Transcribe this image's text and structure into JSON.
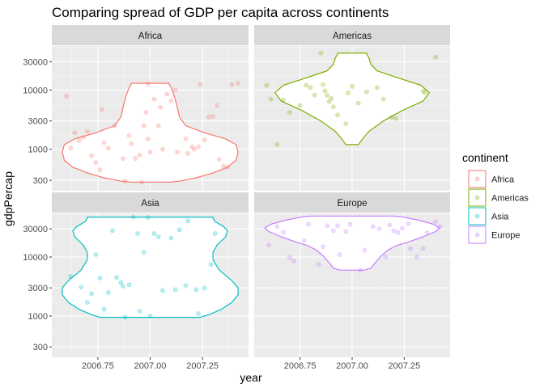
{
  "chart_data": {
    "type": "violin",
    "title": "Comparing spread of GDP per capita across continents",
    "xlabel": "year",
    "ylabel": "gdpPercap",
    "x_ticks": [
      "2006.75",
      "2007.00",
      "2007.25"
    ],
    "x_tick_values": [
      2006.75,
      2007.0,
      2007.25
    ],
    "xlim": [
      2006.53,
      2007.47
    ],
    "y_scale": "log10",
    "y_ticks": [
      "300",
      "1000",
      "3000",
      "10000",
      "30000"
    ],
    "y_tick_values": [
      300,
      1000,
      3000,
      10000,
      30000
    ],
    "ylim": [
      200,
      55000
    ],
    "grid": true,
    "legend": {
      "title": "continent",
      "position": "right",
      "entries": [
        "Africa",
        "Americas",
        "Asia",
        "Europe"
      ]
    },
    "panels": [
      {
        "name": "Africa",
        "color": "#F8766D",
        "violin": {
          "x_center": 2007.0,
          "half_width_max": 0.42,
          "profile": [
            [
              280,
              0.09
            ],
            [
              290,
              0.14
            ],
            [
              330,
              0.22
            ],
            [
              400,
              0.3
            ],
            [
              500,
              0.37
            ],
            [
              650,
              0.41
            ],
            [
              900,
              0.42
            ],
            [
              1200,
              0.41
            ],
            [
              1500,
              0.36
            ],
            [
              1900,
              0.26
            ],
            [
              2500,
              0.17
            ],
            [
              3500,
              0.14
            ],
            [
              5000,
              0.13
            ],
            [
              7000,
              0.12
            ],
            [
              9000,
              0.11
            ],
            [
              11000,
              0.1
            ],
            [
              12500,
              0.09
            ],
            [
              13000,
              0.09
            ]
          ]
        },
        "points": [
          [
            2006.6,
            7800
          ],
          [
            2006.62,
            1050
          ],
          [
            2006.64,
            1900
          ],
          [
            2006.66,
            1400
          ],
          [
            2006.68,
            1600
          ],
          [
            2006.7,
            2000
          ],
          [
            2006.72,
            780
          ],
          [
            2006.74,
            600
          ],
          [
            2006.76,
            450
          ],
          [
            2006.77,
            4700
          ],
          [
            2006.78,
            1300
          ],
          [
            2006.8,
            1050
          ],
          [
            2006.83,
            2500
          ],
          [
            2006.87,
            700
          ],
          [
            2006.9,
            1700
          ],
          [
            2006.91,
            1250
          ],
          [
            2006.93,
            700
          ],
          [
            2006.95,
            800
          ],
          [
            2006.97,
            2500
          ],
          [
            2006.98,
            4200
          ],
          [
            2006.99,
            12700
          ],
          [
            2006.99,
            1500
          ],
          [
            2007.0,
            900
          ],
          [
            2007.02,
            7000
          ],
          [
            2007.04,
            2500
          ],
          [
            2007.05,
            5100
          ],
          [
            2007.06,
            1000
          ],
          [
            2007.08,
            8500
          ],
          [
            2007.1,
            6600
          ],
          [
            2007.12,
            10000
          ],
          [
            2007.13,
            900
          ],
          [
            2007.17,
            1500
          ],
          [
            2007.18,
            850
          ],
          [
            2007.2,
            1100
          ],
          [
            2007.21,
            1000
          ],
          [
            2007.23,
            1100
          ],
          [
            2007.24,
            12400
          ],
          [
            2007.26,
            1450
          ],
          [
            2007.28,
            3500
          ],
          [
            2007.3,
            3600
          ],
          [
            2007.32,
            5500
          ],
          [
            2007.33,
            680
          ],
          [
            2007.35,
            520
          ],
          [
            2007.37,
            500
          ],
          [
            2007.39,
            12300
          ],
          [
            2007.42,
            13000
          ],
          [
            2006.96,
            280
          ],
          [
            2006.88,
            290
          ]
        ]
      },
      {
        "name": "Americas",
        "color": "#7CAE00",
        "violin": {
          "x_center": 2007.0,
          "half_width_max": 0.37,
          "profile": [
            [
              1200,
              0.03
            ],
            [
              1500,
              0.05
            ],
            [
              2000,
              0.08
            ],
            [
              3000,
              0.15
            ],
            [
              4500,
              0.24
            ],
            [
              6500,
              0.34
            ],
            [
              9000,
              0.37
            ],
            [
              12000,
              0.33
            ],
            [
              16000,
              0.22
            ],
            [
              21000,
              0.12
            ],
            [
              27000,
              0.09
            ],
            [
              35000,
              0.08
            ],
            [
              40000,
              0.07
            ],
            [
              42000,
              0.07
            ]
          ]
        },
        "points": [
          [
            2006.59,
            12000
          ],
          [
            2006.61,
            7000
          ],
          [
            2006.64,
            1200
          ],
          [
            2006.67,
            6800
          ],
          [
            2006.7,
            4200
          ],
          [
            2006.75,
            5500
          ],
          [
            2006.78,
            12000
          ],
          [
            2006.8,
            11000
          ],
          [
            2006.82,
            8200
          ],
          [
            2006.85,
            42000
          ],
          [
            2006.86,
            12300
          ],
          [
            2006.87,
            9700
          ],
          [
            2006.89,
            6400
          ],
          [
            2006.9,
            7200
          ],
          [
            2006.91,
            5200
          ],
          [
            2006.93,
            3800
          ],
          [
            2006.97,
            2700
          ],
          [
            2006.98,
            8900
          ],
          [
            2007.03,
            6000
          ],
          [
            2007.07,
            9300
          ],
          [
            2007.12,
            11000
          ],
          [
            2007.15,
            7000
          ],
          [
            2007.19,
            3500
          ],
          [
            2007.21,
            3300
          ],
          [
            2007.34,
            9600
          ],
          [
            2007.35,
            9000
          ],
          [
            2007.4,
            36000
          ],
          [
            2006.88,
            8100
          ],
          [
            2007.0,
            11500
          ]
        ]
      },
      {
        "name": "Asia",
        "color": "#00BFC4",
        "violin": {
          "x_center": 2007.0,
          "half_width_max": 0.42,
          "profile": [
            [
              950,
              0.24
            ],
            [
              1050,
              0.28
            ],
            [
              1300,
              0.34
            ],
            [
              1700,
              0.39
            ],
            [
              2300,
              0.42
            ],
            [
              3000,
              0.42
            ],
            [
              4000,
              0.39
            ],
            [
              6000,
              0.33
            ],
            [
              9000,
              0.3
            ],
            [
              12000,
              0.3
            ],
            [
              16000,
              0.32
            ],
            [
              22000,
              0.36
            ],
            [
              28000,
              0.37
            ],
            [
              33000,
              0.35
            ],
            [
              40000,
              0.31
            ],
            [
              46000,
              0.3
            ],
            [
              47500,
              0.3
            ]
          ]
        },
        "points": [
          [
            2006.62,
            4700
          ],
          [
            2006.67,
            3100
          ],
          [
            2006.7,
            1700
          ],
          [
            2006.72,
            2400
          ],
          [
            2006.74,
            11000
          ],
          [
            2006.76,
            4400
          ],
          [
            2006.78,
            1300
          ],
          [
            2006.8,
            2500
          ],
          [
            2006.82,
            28000
          ],
          [
            2006.84,
            4500
          ],
          [
            2006.86,
            3700
          ],
          [
            2006.87,
            3200
          ],
          [
            2006.88,
            950
          ],
          [
            2006.9,
            3400
          ],
          [
            2006.92,
            47500
          ],
          [
            2006.94,
            25000
          ],
          [
            2006.95,
            1200
          ],
          [
            2006.97,
            12000
          ],
          [
            2006.99,
            47000
          ],
          [
            2007.0,
            1000
          ],
          [
            2007.02,
            25000
          ],
          [
            2007.04,
            22000
          ],
          [
            2007.06,
            2700
          ],
          [
            2007.1,
            21000
          ],
          [
            2007.12,
            2800
          ],
          [
            2007.14,
            29000
          ],
          [
            2007.17,
            3300
          ],
          [
            2007.18,
            41000
          ],
          [
            2007.22,
            2800
          ],
          [
            2007.23,
            1100
          ],
          [
            2007.26,
            3000
          ],
          [
            2007.29,
            7500
          ],
          [
            2007.31,
            25000
          ]
        ]
      },
      {
        "name": "Europe",
        "color": "#C77CFF",
        "violin": {
          "x_center": 2007.0,
          "half_width_max": 0.42,
          "profile": [
            [
              6000,
              0.06
            ],
            [
              6500,
              0.09
            ],
            [
              8000,
              0.11
            ],
            [
              10500,
              0.14
            ],
            [
              13000,
              0.17
            ],
            [
              15500,
              0.21
            ],
            [
              18000,
              0.27
            ],
            [
              22000,
              0.34
            ],
            [
              27000,
              0.4
            ],
            [
              31000,
              0.42
            ],
            [
              36000,
              0.39
            ],
            [
              42000,
              0.32
            ],
            [
              48000,
              0.24
            ],
            [
              49500,
              0.2
            ]
          ]
        },
        "points": [
          [
            2006.6,
            16000
          ],
          [
            2006.64,
            33000
          ],
          [
            2006.67,
            26000
          ],
          [
            2006.7,
            9800
          ],
          [
            2006.72,
            8600
          ],
          [
            2006.77,
            19000
          ],
          [
            2006.79,
            36000
          ],
          [
            2006.84,
            7500
          ],
          [
            2006.86,
            15000
          ],
          [
            2006.88,
            34000
          ],
          [
            2006.91,
            28000
          ],
          [
            2006.93,
            34000
          ],
          [
            2006.94,
            11000
          ],
          [
            2006.97,
            27000
          ],
          [
            2006.99,
            36000
          ],
          [
            2007.04,
            6000
          ],
          [
            2007.06,
            13000
          ],
          [
            2007.1,
            33000
          ],
          [
            2007.13,
            30000
          ],
          [
            2007.16,
            10000
          ],
          [
            2007.18,
            35000
          ],
          [
            2007.2,
            28000
          ],
          [
            2007.22,
            26000
          ],
          [
            2007.24,
            31000
          ],
          [
            2007.27,
            37000
          ],
          [
            2007.28,
            14000
          ],
          [
            2007.31,
            10000
          ],
          [
            2007.34,
            14000
          ],
          [
            2007.36,
            26000
          ],
          [
            2007.4,
            40000
          ],
          [
            2007.42,
            33000
          ]
        ]
      }
    ]
  }
}
